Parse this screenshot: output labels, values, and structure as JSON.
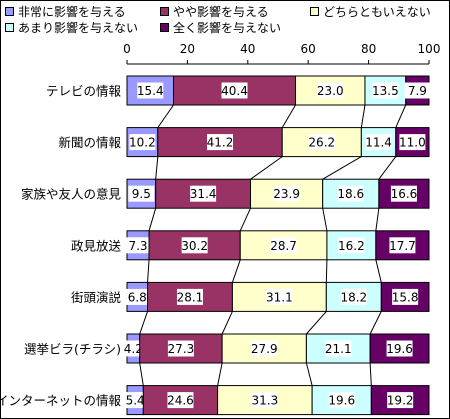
{
  "legend": [
    {
      "label": "非常に影響を与える",
      "color": "#9999ff"
    },
    {
      "label": "やや影響を与える",
      "color": "#993366"
    },
    {
      "label": "どちらともいえない",
      "color": "#ffffcc"
    },
    {
      "label": "あまり影響を与えない",
      "color": "#ccffff"
    },
    {
      "label": "全く影響を与えない",
      "color": "#660066"
    }
  ],
  "chart_data": {
    "type": "bar",
    "orientation": "horizontal",
    "stacked": true,
    "percent_stacked": true,
    "xlim": [
      0,
      100
    ],
    "xticks": [
      0,
      20,
      40,
      60,
      80,
      100
    ],
    "grid": false,
    "legend_position": "top",
    "series_lines": true,
    "categories": [
      "テレビの情報",
      "新聞の情報",
      "家族や友人の意見",
      "政見放送",
      "街頭演説",
      "選挙ビラ(チラシ)",
      "インターネットの情報"
    ],
    "series": [
      {
        "name": "非常に影響を与える",
        "color": "#9999ff",
        "values": [
          15.4,
          10.2,
          9.5,
          7.3,
          6.8,
          4.2,
          5.4
        ]
      },
      {
        "name": "やや影響を与える",
        "color": "#993366",
        "values": [
          40.4,
          41.2,
          31.4,
          30.2,
          28.1,
          27.3,
          24.6
        ]
      },
      {
        "name": "どちらともいえない",
        "color": "#ffffcc",
        "values": [
          23.0,
          26.2,
          23.9,
          28.7,
          31.1,
          27.9,
          31.3
        ]
      },
      {
        "name": "あまり影響を与えない",
        "color": "#ccffff",
        "values": [
          13.5,
          11.4,
          18.6,
          16.2,
          18.2,
          21.1,
          19.6
        ]
      },
      {
        "name": "全く影響を与えない",
        "color": "#660066",
        "values": [
          7.9,
          11.0,
          16.6,
          17.7,
          15.8,
          19.6,
          19.2
        ]
      }
    ]
  }
}
